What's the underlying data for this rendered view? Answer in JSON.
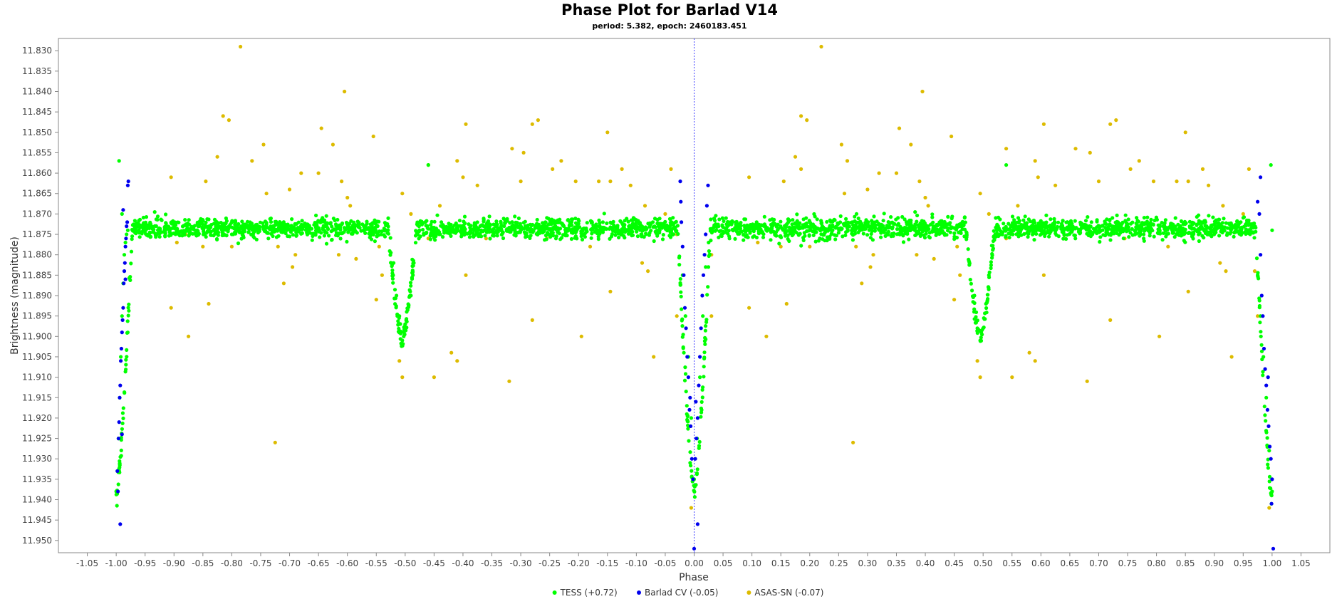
{
  "chart_data": {
    "type": "scatter",
    "title": "Phase Plot for Barlad V14",
    "subtitle": "period: 5.382, epoch: 2460183.451",
    "xlabel": "Phase",
    "ylabel": "Brightness (magnitude)",
    "xlim": [
      -1.1,
      1.1
    ],
    "ylim": [
      11.827,
      11.953
    ],
    "y_inverted": true,
    "x_ticks": [
      "-1.05",
      "-1.00",
      "-0.95",
      "-0.90",
      "-0.85",
      "-0.80",
      "-0.75",
      "-0.70",
      "-0.65",
      "-0.60",
      "-0.55",
      "-0.50",
      "-0.45",
      "-0.40",
      "-0.35",
      "-0.30",
      "-0.25",
      "-0.20",
      "-0.15",
      "-0.10",
      "-0.05",
      "0.00",
      "0.05",
      "0.10",
      "0.15",
      "0.20",
      "0.25",
      "0.30",
      "0.35",
      "0.40",
      "0.45",
      "0.50",
      "0.55",
      "0.60",
      "0.65",
      "0.70",
      "0.75",
      "0.80",
      "0.85",
      "0.90",
      "0.95",
      "1.00",
      "1.05"
    ],
    "y_ticks": [
      "11.830",
      "11.835",
      "11.840",
      "11.845",
      "11.850",
      "11.855",
      "11.860",
      "11.865",
      "11.870",
      "11.875",
      "11.880",
      "11.885",
      "11.890",
      "11.895",
      "11.900",
      "11.905",
      "11.910",
      "11.915",
      "11.920",
      "11.925",
      "11.930",
      "11.935",
      "11.940",
      "11.945",
      "11.950"
    ],
    "marker_line_x": 0.0,
    "legend_position": "bottom-center",
    "series": [
      {
        "name": "TESS (+0.72)",
        "color": "#00ff00",
        "model": {
          "baseline": 11.8735,
          "primary_center": 0.0,
          "primary_depth": 0.066,
          "primary_halfwidth": 0.028,
          "secondary_center": 0.495,
          "secondary_depth": 0.027,
          "secondary_halfwidth": 0.025,
          "scatter": 0.0012,
          "phase_range": [
            -1.0,
            1.0
          ]
        },
        "values": [
          [
            -1.0,
            11.938
          ],
          [
            -0.998,
            11.933
          ],
          [
            -0.996,
            11.925
          ],
          [
            -0.994,
            11.915
          ],
          [
            -0.992,
            11.905
          ],
          [
            -0.99,
            11.895
          ],
          [
            -0.988,
            11.887
          ],
          [
            -0.986,
            11.88
          ],
          [
            -0.984,
            11.877
          ],
          [
            -0.982,
            11.875
          ],
          [
            -0.98,
            11.874
          ],
          [
            -0.995,
            11.857
          ],
          [
            -0.99,
            11.87
          ],
          [
            -0.505,
            11.901
          ],
          [
            -0.5,
            11.897
          ],
          [
            -0.51,
            11.895
          ],
          [
            -0.515,
            11.89
          ],
          [
            -0.49,
            11.89
          ],
          [
            -0.485,
            11.882
          ],
          [
            -0.52,
            11.882
          ],
          [
            -0.46,
            11.858
          ],
          [
            -0.02,
            11.885
          ],
          [
            -0.015,
            11.895
          ],
          [
            -0.01,
            11.905
          ],
          [
            -0.005,
            11.92
          ],
          [
            0.0,
            11.935
          ],
          [
            0.005,
            11.925
          ],
          [
            0.01,
            11.91
          ],
          [
            0.015,
            11.895
          ],
          [
            0.02,
            11.883
          ],
          [
            0.025,
            11.877
          ],
          [
            0.485,
            11.89
          ],
          [
            0.49,
            11.898
          ],
          [
            0.495,
            11.901
          ],
          [
            0.5,
            11.898
          ],
          [
            0.505,
            11.892
          ],
          [
            0.51,
            11.885
          ],
          [
            0.54,
            11.858
          ],
          [
            0.975,
            11.885
          ],
          [
            0.98,
            11.895
          ],
          [
            0.985,
            11.905
          ],
          [
            0.99,
            11.915
          ],
          [
            0.995,
            11.928
          ],
          [
            1.0,
            11.938
          ],
          [
            0.998,
            11.858
          ],
          [
            1.0,
            11.874
          ]
        ]
      },
      {
        "name": "Barlad CV (-0.05)",
        "color": "#0000ee",
        "values": [
          [
            -0.998,
            11.933
          ],
          [
            -0.997,
            11.938
          ],
          [
            -0.996,
            11.925
          ],
          [
            -0.995,
            11.921
          ],
          [
            -0.994,
            11.915
          ],
          [
            -0.993,
            11.912
          ],
          [
            -0.992,
            11.906
          ],
          [
            -0.991,
            11.903
          ],
          [
            -0.99,
            11.899
          ],
          [
            -0.989,
            11.896
          ],
          [
            -0.988,
            11.893
          ],
          [
            -0.987,
            11.887
          ],
          [
            -0.986,
            11.884
          ],
          [
            -0.985,
            11.882
          ],
          [
            -0.984,
            11.878
          ],
          [
            -0.983,
            11.876
          ],
          [
            -0.982,
            11.873
          ],
          [
            -0.981,
            11.872
          ],
          [
            -0.98,
            11.863
          ],
          [
            -0.979,
            11.862
          ],
          [
            -0.988,
            11.869
          ],
          [
            -0.993,
            11.946
          ],
          [
            -0.99,
            11.924
          ],
          [
            -0.984,
            11.886
          ],
          [
            -0.024,
            11.862
          ],
          [
            -0.023,
            11.867
          ],
          [
            -0.022,
            11.872
          ],
          [
            -0.02,
            11.878
          ],
          [
            -0.018,
            11.885
          ],
          [
            -0.016,
            11.893
          ],
          [
            -0.014,
            11.898
          ],
          [
            -0.012,
            11.905
          ],
          [
            -0.01,
            11.91
          ],
          [
            -0.008,
            11.918
          ],
          [
            -0.006,
            11.922
          ],
          [
            -0.004,
            11.93
          ],
          [
            -0.002,
            11.935
          ],
          [
            0.0,
            11.952
          ],
          [
            0.002,
            11.93
          ],
          [
            0.004,
            11.925
          ],
          [
            0.006,
            11.92
          ],
          [
            0.008,
            11.912
          ],
          [
            0.01,
            11.905
          ],
          [
            0.012,
            11.898
          ],
          [
            0.014,
            11.89
          ],
          [
            0.016,
            11.885
          ],
          [
            0.018,
            11.88
          ],
          [
            0.02,
            11.875
          ],
          [
            0.022,
            11.868
          ],
          [
            0.024,
            11.863
          ],
          [
            0.006,
            11.946
          ],
          [
            -0.007,
            11.915
          ],
          [
            0.003,
            11.916
          ],
          [
            0.975,
            11.867
          ],
          [
            0.978,
            11.87
          ],
          [
            0.98,
            11.88
          ],
          [
            0.982,
            11.89
          ],
          [
            0.984,
            11.895
          ],
          [
            0.986,
            11.903
          ],
          [
            0.988,
            11.908
          ],
          [
            0.99,
            11.912
          ],
          [
            0.992,
            11.918
          ],
          [
            0.994,
            11.922
          ],
          [
            0.996,
            11.927
          ],
          [
            0.998,
            11.93
          ],
          [
            1.0,
            11.935
          ],
          [
            0.999,
            11.941
          ],
          [
            0.98,
            11.861
          ],
          [
            1.002,
            11.952
          ],
          [
            0.993,
            11.91
          ]
        ]
      },
      {
        "name": "ASAS-SN (-0.07)",
        "color": "#ddbb00",
        "values": [
          [
            -0.785,
            11.829
          ],
          [
            0.22,
            11.829
          ],
          [
            -0.605,
            11.84
          ],
          [
            0.395,
            11.84
          ],
          [
            -0.815,
            11.846
          ],
          [
            -0.805,
            11.847
          ],
          [
            0.185,
            11.846
          ],
          [
            0.195,
            11.847
          ],
          [
            -0.645,
            11.849
          ],
          [
            0.355,
            11.849
          ],
          [
            -0.555,
            11.851
          ],
          [
            0.445,
            11.851
          ],
          [
            -0.15,
            11.85
          ],
          [
            0.85,
            11.85
          ],
          [
            -0.395,
            11.848
          ],
          [
            0.605,
            11.848
          ],
          [
            -0.28,
            11.848
          ],
          [
            -0.27,
            11.847
          ],
          [
            0.72,
            11.848
          ],
          [
            0.73,
            11.847
          ],
          [
            -0.745,
            11.853
          ],
          [
            0.255,
            11.853
          ],
          [
            -0.625,
            11.853
          ],
          [
            0.375,
            11.853
          ],
          [
            -0.825,
            11.856
          ],
          [
            0.175,
            11.856
          ],
          [
            -0.765,
            11.857
          ],
          [
            -0.68,
            11.86
          ],
          [
            -0.65,
            11.86
          ],
          [
            -0.61,
            11.862
          ],
          [
            0.32,
            11.86
          ],
          [
            0.35,
            11.86
          ],
          [
            0.39,
            11.862
          ],
          [
            -0.46,
            11.858
          ],
          [
            -0.41,
            11.857
          ],
          [
            -0.315,
            11.854
          ],
          [
            -0.295,
            11.855
          ],
          [
            -0.23,
            11.857
          ],
          [
            -0.125,
            11.859
          ],
          [
            -0.04,
            11.859
          ],
          [
            0.185,
            11.859
          ],
          [
            0.265,
            11.857
          ],
          [
            0.54,
            11.854
          ],
          [
            0.59,
            11.857
          ],
          [
            0.66,
            11.854
          ],
          [
            0.685,
            11.855
          ],
          [
            0.77,
            11.857
          ],
          [
            0.88,
            11.859
          ],
          [
            0.96,
            11.859
          ],
          [
            -0.905,
            11.861
          ],
          [
            -0.845,
            11.862
          ],
          [
            -0.74,
            11.865
          ],
          [
            -0.7,
            11.864
          ],
          [
            -0.6,
            11.866
          ],
          [
            -0.595,
            11.868
          ],
          [
            -0.505,
            11.865
          ],
          [
            -0.49,
            11.87
          ],
          [
            -0.44,
            11.868
          ],
          [
            -0.4,
            11.861
          ],
          [
            -0.375,
            11.863
          ],
          [
            -0.3,
            11.862
          ],
          [
            -0.245,
            11.859
          ],
          [
            -0.205,
            11.862
          ],
          [
            -0.165,
            11.862
          ],
          [
            -0.145,
            11.862
          ],
          [
            -0.11,
            11.863
          ],
          [
            -0.085,
            11.868
          ],
          [
            -0.05,
            11.87
          ],
          [
            0.095,
            11.861
          ],
          [
            0.155,
            11.862
          ],
          [
            0.26,
            11.865
          ],
          [
            0.3,
            11.864
          ],
          [
            0.4,
            11.866
          ],
          [
            0.405,
            11.868
          ],
          [
            0.495,
            11.865
          ],
          [
            0.51,
            11.87
          ],
          [
            0.56,
            11.868
          ],
          [
            0.595,
            11.861
          ],
          [
            0.625,
            11.863
          ],
          [
            0.7,
            11.862
          ],
          [
            0.755,
            11.859
          ],
          [
            0.795,
            11.862
          ],
          [
            0.835,
            11.862
          ],
          [
            0.855,
            11.862
          ],
          [
            0.89,
            11.863
          ],
          [
            0.915,
            11.868
          ],
          [
            0.95,
            11.87
          ],
          [
            -0.895,
            11.877
          ],
          [
            -0.88,
            11.875
          ],
          [
            -0.85,
            11.878
          ],
          [
            -0.8,
            11.878
          ],
          [
            -0.72,
            11.878
          ],
          [
            -0.69,
            11.88
          ],
          [
            -0.615,
            11.88
          ],
          [
            -0.585,
            11.881
          ],
          [
            -0.545,
            11.878
          ],
          [
            -0.46,
            11.876
          ],
          [
            -0.36,
            11.876
          ],
          [
            -0.255,
            11.876
          ],
          [
            -0.18,
            11.878
          ],
          [
            -0.09,
            11.882
          ],
          [
            -0.08,
            11.884
          ],
          [
            0.11,
            11.877
          ],
          [
            0.15,
            11.878
          ],
          [
            0.2,
            11.878
          ],
          [
            0.28,
            11.878
          ],
          [
            0.31,
            11.88
          ],
          [
            0.385,
            11.88
          ],
          [
            0.415,
            11.881
          ],
          [
            0.455,
            11.878
          ],
          [
            0.54,
            11.876
          ],
          [
            0.64,
            11.876
          ],
          [
            0.745,
            11.876
          ],
          [
            0.82,
            11.878
          ],
          [
            0.91,
            11.882
          ],
          [
            0.92,
            11.884
          ],
          [
            -0.71,
            11.887
          ],
          [
            -0.695,
            11.883
          ],
          [
            -0.54,
            11.885
          ],
          [
            -0.395,
            11.885
          ],
          [
            -0.145,
            11.889
          ],
          [
            0.29,
            11.887
          ],
          [
            0.305,
            11.883
          ],
          [
            0.46,
            11.885
          ],
          [
            0.605,
            11.885
          ],
          [
            0.855,
            11.889
          ],
          [
            -0.84,
            11.892
          ],
          [
            -0.905,
            11.893
          ],
          [
            -0.55,
            11.891
          ],
          [
            0.16,
            11.892
          ],
          [
            0.095,
            11.893
          ],
          [
            0.45,
            11.891
          ],
          [
            -0.875,
            11.9
          ],
          [
            -0.195,
            11.9
          ],
          [
            -0.28,
            11.896
          ],
          [
            -0.07,
            11.905
          ],
          [
            0.125,
            11.9
          ],
          [
            0.805,
            11.9
          ],
          [
            0.72,
            11.896
          ],
          [
            0.93,
            11.905
          ],
          [
            -0.42,
            11.904
          ],
          [
            -0.41,
            11.906
          ],
          [
            -0.51,
            11.906
          ],
          [
            0.58,
            11.904
          ],
          [
            0.59,
            11.906
          ],
          [
            0.49,
            11.906
          ],
          [
            -0.505,
            11.91
          ],
          [
            -0.45,
            11.91
          ],
          [
            -0.32,
            11.911
          ],
          [
            0.495,
            11.91
          ],
          [
            0.55,
            11.91
          ],
          [
            0.68,
            11.911
          ],
          [
            -0.725,
            11.926
          ],
          [
            0.275,
            11.926
          ],
          [
            -0.005,
            11.942
          ],
          [
            0.995,
            11.942
          ],
          [
            -0.03,
            11.895
          ],
          [
            0.03,
            11.895
          ],
          [
            -0.03,
            11.875
          ],
          [
            0.03,
            11.88
          ],
          [
            0.97,
            11.884
          ],
          [
            0.975,
            11.895
          ]
        ]
      }
    ]
  }
}
